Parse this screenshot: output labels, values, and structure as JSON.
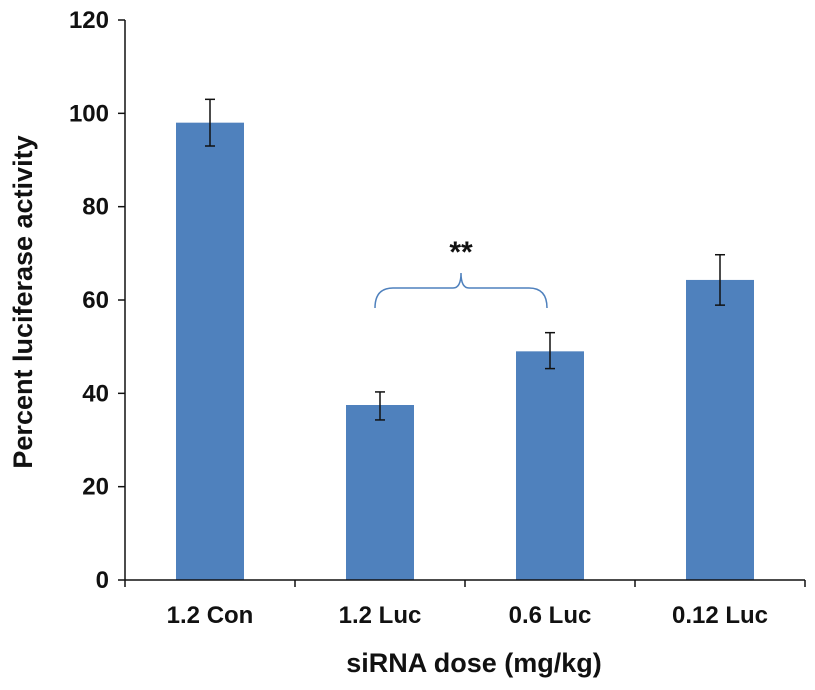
{
  "chart_data": {
    "type": "bar",
    "title": "",
    "xlabel": "siRNA dose (mg/kg)",
    "ylabel": "Percent luciferase activity",
    "categories": [
      "1.2 Con",
      "1.2 Luc",
      "0.6 Luc",
      "0.12 Luc"
    ],
    "values": [
      98,
      37.5,
      49,
      64.3
    ],
    "error_low": [
      93,
      34.3,
      45.3,
      58.9
    ],
    "error_high": [
      103,
      40.3,
      53,
      69.7
    ],
    "ylim": [
      0,
      120
    ],
    "yticks": [
      0,
      20,
      40,
      60,
      80,
      100,
      120
    ],
    "grid": false,
    "legend": "none",
    "bar_color": "#4f81bd",
    "annotations": [
      {
        "text": "**",
        "from_category": 1,
        "to_category": 2
      }
    ]
  }
}
